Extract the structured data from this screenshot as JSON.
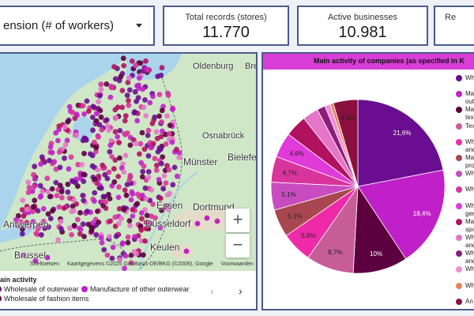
{
  "filter": {
    "selected": "ension (# of workers)"
  },
  "kpis": [
    {
      "label": "Total records (stores)",
      "value": "11.770"
    },
    {
      "label": "Active businesses",
      "value": "10.981"
    },
    {
      "label": "Re",
      "value": ""
    }
  ],
  "map": {
    "cities": [
      {
        "name": "Oldenburg"
      },
      {
        "name": "Bre"
      },
      {
        "name": "Osnabrück"
      },
      {
        "name": "Münster"
      },
      {
        "name": "Bielefe"
      },
      {
        "name": "Essen"
      },
      {
        "name": "Dortmund"
      },
      {
        "name": "Antwerpen"
      },
      {
        "name": "Düsseldorf"
      },
      {
        "name": "Keulen"
      },
      {
        "name": "Brussel"
      }
    ],
    "attribution": {
      "shortcuts": "Sneltoetsen",
      "data": "Kaartgegevens ©2025 GeoBasis-DE/BKG (©2009), Google",
      "terms": "Voorwaarden"
    },
    "zoom_in": "+",
    "zoom_out": "−",
    "legend": {
      "title": "ain activity",
      "items": [
        {
          "label": "Wholesale of outerwear",
          "color": "#6a0d91"
        },
        {
          "label": "Manufacture of other outerwear",
          "color": "#c020c8"
        },
        {
          "label": "Wholesale of fashion items",
          "color": "#5c0040"
        }
      ]
    },
    "pager_prev": "‹",
    "pager_next": "›",
    "colors": {
      "water": "#a9d4ec",
      "land": "#cfe7c7",
      "border": "#6a6a6a"
    }
  },
  "pie": {
    "title": "Main activity of companies (as specified in K",
    "header_color": "#d83fd6",
    "legend": [
      {
        "label": "Wh",
        "color": "#6a0d91"
      },
      {
        "label": "Ma",
        "label2": "out",
        "color": "#c020c8"
      },
      {
        "label": "Ma",
        "label2": "tex",
        "color": "#5c0040"
      },
      {
        "label": "Tex",
        "color": "#c75d97"
      },
      {
        "label": "Wh",
        "label2": "and",
        "color": "#ee2aa8"
      },
      {
        "label": "Ma",
        "label2": "pro",
        "color": "#a8474f"
      },
      {
        "label": "Wh",
        "color": "#c84cc0"
      },
      {
        "label": "Wh",
        "color": "#d9349c"
      },
      {
        "label": "Wh",
        "label2": "ger",
        "color": "#e03ad8"
      },
      {
        "label": "Ma",
        "label2": "spo",
        "color": "#b01260"
      },
      {
        "label": "Wh",
        "label2": "and",
        "color": "#e575c8"
      },
      {
        "label": "Wh",
        "label2": "and",
        "color": "#8d1d7a"
      },
      {
        "label": "Wh",
        "color": "#f08ed8"
      },
      {
        "label": "Wh",
        "color": "#e8825a"
      },
      {
        "label": "An",
        "color": "#8a1040"
      }
    ]
  },
  "chart_data": {
    "type": "pie",
    "title": "Main activity of companies (as specified in K",
    "slices": [
      {
        "value": 21.6,
        "label": "21,6%",
        "color": "#6a0d91"
      },
      {
        "value": 18.4,
        "label": "18,4%",
        "color": "#c020c8"
      },
      {
        "value": 10.0,
        "label": "10%",
        "color": "#5c0040"
      },
      {
        "value": 8.7,
        "label": "8,7%",
        "color": "#c75d97"
      },
      {
        "value": 5.6,
        "label": "5,6%",
        "color": "#ee2aa8"
      },
      {
        "value": 5.1,
        "label": "5,1%",
        "color": "#a8474f"
      },
      {
        "value": 5.1,
        "label": "5,1%",
        "color": "#c84cc0"
      },
      {
        "value": 4.7,
        "label": "4,7%",
        "color": "#d9349c"
      },
      {
        "value": 4.6,
        "label": "4,6%",
        "color": "#e03ad8"
      },
      {
        "value": 4.0,
        "label": "",
        "color": "#b01260"
      },
      {
        "value": 2.9,
        "label": "",
        "color": "#e575c8"
      },
      {
        "value": 1.5,
        "label": "",
        "color": "#8d1d7a"
      },
      {
        "value": 1.0,
        "label": "",
        "color": "#f08ed8"
      },
      {
        "value": 0.6,
        "label": "",
        "color": "#e8825a"
      },
      {
        "value": 4.5,
        "label": "4,5%",
        "color": "#8a1040"
      }
    ]
  }
}
